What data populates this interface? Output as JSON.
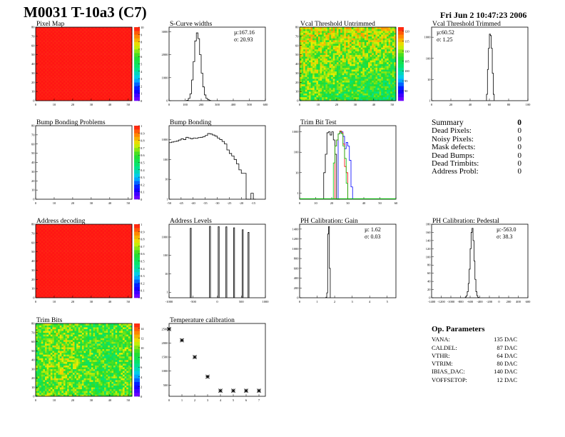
{
  "header": {
    "title": "M0031 T-10a3 (C7)",
    "date": "Fri Jun  2 10:47:23 2006"
  },
  "colors": {
    "hist_line": "#000000",
    "trim_green": "#00c000",
    "trim_red": "#ff0000",
    "trim_blue": "#0000ff",
    "heat_red": "#ff2020"
  },
  "summary": {
    "title": "Summary",
    "total": "0",
    "rows": [
      {
        "label": "Dead Pixels:",
        "value": "0"
      },
      {
        "label": "Noisy Pixels:",
        "value": "0"
      },
      {
        "label": "Mask defects:",
        "value": "0"
      },
      {
        "label": "Dead Bumps:",
        "value": "0"
      },
      {
        "label": "Dead Trimbits:",
        "value": "0"
      },
      {
        "label": "Address Probl:",
        "value": "0"
      }
    ]
  },
  "op_parameters": {
    "title": "Op. Parameters",
    "rows": [
      {
        "label": "VANA:",
        "value": "135 DAC"
      },
      {
        "label": "CALDEL:",
        "value": "87 DAC"
      },
      {
        "label": "VTHR:",
        "value": "64 DAC"
      },
      {
        "label": "VTRIM:",
        "value": "80 DAC"
      },
      {
        "label": "IBIAS_DAC:",
        "value": "140 DAC"
      },
      {
        "label": "VOFFSETOP:",
        "value": "12 DAC"
      }
    ]
  },
  "chart_data": [
    {
      "id": "pixel-map",
      "type": "heatmap",
      "title": "Pixel Map",
      "xlim": [
        0,
        52
      ],
      "ylim": [
        0,
        80
      ],
      "xticks": [
        0,
        10,
        20,
        30,
        40,
        50
      ],
      "yticks": [
        0,
        10,
        20,
        30,
        40,
        50,
        60,
        70,
        80
      ],
      "zlim": [
        0,
        10
      ],
      "zticks": [
        0,
        1,
        2,
        3,
        4,
        5,
        6,
        7,
        8,
        9,
        10
      ],
      "pattern": "uniform",
      "level": 10
    },
    {
      "id": "s-curve-widths",
      "type": "bar",
      "title": "S-Curve widths",
      "xlim": [
        0,
        600
      ],
      "ylim": [
        0,
        3200
      ],
      "xticks": [
        0,
        100,
        200,
        300,
        400,
        500,
        600
      ],
      "yticks": [
        0,
        1000,
        2000,
        3000
      ],
      "stats": [
        "µ:167.16",
        "σ: 20.93"
      ],
      "bin_width": 10,
      "series": [
        {
          "x": [
            110,
            120,
            130,
            140,
            150,
            160,
            170,
            180,
            190,
            200,
            210,
            220,
            230,
            240,
            250
          ],
          "values": [
            20,
            100,
            300,
            900,
            1700,
            2600,
            2950,
            2700,
            2000,
            1200,
            600,
            250,
            100,
            40,
            10
          ]
        }
      ]
    },
    {
      "id": "vcal-threshold-untrimmed",
      "type": "heatmap",
      "title": "Vcal Threshold Untrimmed",
      "xlim": [
        0,
        52
      ],
      "ylim": [
        0,
        80
      ],
      "xticks": [
        0,
        10,
        20,
        30,
        40,
        50
      ],
      "yticks": [
        0,
        10,
        20,
        30,
        40,
        50,
        60,
        70,
        80
      ],
      "zlim": [
        85,
        122
      ],
      "zticks": [
        90,
        95,
        100,
        105,
        110,
        115,
        120
      ],
      "pattern": "noisy",
      "level": 106
    },
    {
      "id": "vcal-threshold-trimmed",
      "type": "bar",
      "title": "Vcal Threshold Trimmed",
      "log": true,
      "xlim": [
        0,
        100
      ],
      "ylim": [
        1,
        3000
      ],
      "xticks": [
        0,
        20,
        40,
        60,
        80,
        100
      ],
      "yticks": [
        1,
        10,
        100,
        1000
      ],
      "stats": [
        "µ:60.52",
        "σ: 1.25"
      ],
      "bin_width": 1,
      "series": [
        {
          "x": [
            57,
            58,
            59,
            60,
            61,
            62,
            63,
            64
          ],
          "values": [
            2,
            30,
            300,
            1400,
            1200,
            300,
            20,
            2
          ]
        }
      ]
    },
    {
      "id": "bump-bonding-problems",
      "type": "heatmap",
      "title": "Bump Bonding Problems",
      "xlim": [
        0,
        52
      ],
      "ylim": [
        0,
        80
      ],
      "xticks": [
        0,
        10,
        20,
        30,
        40,
        50
      ],
      "yticks": [
        0,
        10,
        20,
        30,
        40,
        50,
        60,
        70,
        80
      ],
      "zlim": [
        0,
        1
      ],
      "zticks": [
        0,
        0.1,
        0.2,
        0.3,
        0.4,
        0.5,
        0.6,
        0.7,
        0.8,
        0.9,
        1
      ],
      "pattern": "empty",
      "level": 0
    },
    {
      "id": "bump-bonding",
      "type": "bar",
      "title": "Bump Bonding",
      "log": true,
      "xlim": [
        -50,
        -10
      ],
      "ylim": [
        1,
        5000
      ],
      "xticks": [
        -50,
        -45,
        -40,
        -35,
        -30,
        -25,
        -20,
        -15
      ],
      "yticks": [
        1,
        10,
        100,
        1000
      ],
      "bin_width": 1,
      "series": [
        {
          "x": [
            -50,
            -49,
            -48,
            -47,
            -46,
            -45,
            -44,
            -43,
            -42,
            -41,
            -40,
            -39,
            -38,
            -37,
            -36,
            -35,
            -34,
            -33,
            -32,
            -31,
            -30,
            -29,
            -28,
            -27,
            -26,
            -25,
            -24,
            -23,
            -22,
            -21,
            -20,
            -19,
            -18,
            -17,
            -16,
            -15
          ],
          "values": [
            700,
            750,
            800,
            850,
            950,
            1100,
            1000,
            1300,
            1200,
            1100,
            1200,
            1150,
            1250,
            1300,
            1400,
            1600,
            2000,
            1900,
            1700,
            1500,
            1200,
            1000,
            800,
            600,
            300,
            200,
            150,
            100,
            60,
            30,
            20,
            20,
            0,
            0,
            2,
            0
          ]
        }
      ]
    },
    {
      "id": "trim-bit-test",
      "type": "bar",
      "title": "Trim Bit Test",
      "log": true,
      "xlim": [
        0,
        60
      ],
      "ylim": [
        0.5,
        2000
      ],
      "xticks": [
        0,
        10,
        20,
        30,
        40,
        50,
        60
      ],
      "yticks": [
        1,
        10,
        100,
        1000
      ],
      "bin_width": 1,
      "series": [
        {
          "color": "#000000",
          "x": [
            15,
            16,
            17,
            18,
            19,
            20,
            21,
            22,
            23,
            24
          ],
          "values": [
            10,
            80,
            900,
            1000,
            700,
            1000,
            400,
            80,
            0,
            0
          ]
        },
        {
          "color": "#0000ff",
          "x": [
            24,
            25,
            26,
            27,
            28,
            29,
            30,
            31,
            32
          ],
          "values": [
            800,
            900,
            1000,
            600,
            150,
            300,
            200,
            40,
            2
          ]
        },
        {
          "color": "#ff0000",
          "x": [
            22,
            23,
            24,
            25,
            26,
            27,
            28,
            29
          ],
          "values": [
            200,
            400,
            800,
            1100,
            900,
            250,
            20,
            10
          ]
        },
        {
          "color": "#00c000",
          "x": [
            21,
            22,
            23,
            24,
            25,
            26,
            27,
            28,
            29
          ],
          "values": [
            30,
            200,
            400,
            800,
            1000,
            800,
            200,
            50,
            3
          ]
        }
      ]
    },
    {
      "id": "address-decoding",
      "type": "heatmap",
      "title": "Address decoding",
      "xlim": [
        0,
        52
      ],
      "ylim": [
        0,
        80
      ],
      "xticks": [
        0,
        10,
        20,
        30,
        40,
        50
      ],
      "yticks": [
        0,
        10,
        20,
        30,
        40,
        50,
        60,
        70,
        80
      ],
      "zlim": [
        0,
        1
      ],
      "zticks": [
        0,
        0.1,
        0.2,
        0.3,
        0.4,
        0.5,
        0.6,
        0.7,
        0.8,
        0.9,
        1
      ],
      "pattern": "uniform",
      "level": 1
    },
    {
      "id": "address-levels",
      "type": "bar",
      "title": "Address Levels",
      "log": true,
      "xlim": [
        -1000,
        1000
      ],
      "ylim": [
        0.5,
        5000
      ],
      "xticks": [
        -1000,
        -500,
        0,
        500,
        1000
      ],
      "yticks": [
        1,
        10,
        100,
        1000
      ],
      "bin_width": 20,
      "series": [
        {
          "x": [
            -560,
            -160,
            20,
            180,
            340,
            520,
            640
          ],
          "values": [
            3000,
            3800,
            3700,
            3600,
            3200,
            2500,
            1800
          ]
        }
      ]
    },
    {
      "id": "ph-calibration-gain",
      "type": "bar",
      "title": "PH Calibration: Gain",
      "xlim": [
        0,
        5.5
      ],
      "ylim": [
        0,
        1500
      ],
      "xticks": [
        0,
        1,
        2,
        3,
        4,
        5
      ],
      "yticks": [
        0,
        200,
        400,
        600,
        800,
        1000,
        1200,
        1400
      ],
      "stats": [
        "µ: 1.62",
        "σ: 0.03"
      ],
      "bin_width": 0.05,
      "series": [
        {
          "x": [
            1.5,
            1.55,
            1.6,
            1.65,
            1.7
          ],
          "values": [
            10,
            100,
            1300,
            1450,
            600
          ]
        }
      ]
    },
    {
      "id": "ph-calibration-pedestal",
      "type": "bar",
      "title": "PH Calibration: Pedestal",
      "xlim": [
        -1400,
        600
      ],
      "ylim": [
        0,
        180
      ],
      "xticks": [
        -1400,
        -1200,
        -1000,
        -800,
        -600,
        -400,
        -200,
        0,
        200,
        400,
        600
      ],
      "yticks": [
        0,
        20,
        40,
        60,
        80,
        100,
        120,
        140,
        160,
        180
      ],
      "stats": [
        "µ:-563.0",
        "σ: 38.3"
      ],
      "bin_width": 20,
      "series": [
        {
          "x": [
            -700,
            -680,
            -660,
            -640,
            -620,
            -600,
            -580,
            -560,
            -540,
            -520,
            -500,
            -480,
            -460,
            -440
          ],
          "values": [
            2,
            5,
            15,
            35,
            70,
            120,
            160,
            170,
            140,
            90,
            45,
            15,
            5,
            1
          ]
        }
      ]
    },
    {
      "id": "trim-bits",
      "type": "heatmap",
      "title": "Trim Bits",
      "xlim": [
        0,
        52
      ],
      "ylim": [
        0,
        80
      ],
      "xticks": [
        0,
        10,
        20,
        30,
        40,
        50
      ],
      "yticks": [
        0,
        10,
        20,
        30,
        40,
        50,
        60,
        70,
        80
      ],
      "zlim": [
        0,
        15
      ],
      "zticks": [
        0,
        2,
        4,
        6,
        8,
        10,
        12,
        14
      ],
      "pattern": "noisy",
      "level": 8
    },
    {
      "id": "temperature-calibration",
      "type": "scatter",
      "title": "Temperature calibration",
      "xlim": [
        0,
        7.5
      ],
      "ylim": [
        100,
        2700
      ],
      "xticks": [
        0,
        1,
        2,
        3,
        4,
        5,
        6,
        7
      ],
      "yticks": [
        500,
        1000,
        1500,
        2000,
        2500
      ],
      "series": [
        {
          "x": [
            0,
            1,
            2,
            3,
            4,
            5,
            6,
            7
          ],
          "values": [
            2500,
            2100,
            1500,
            800,
            300,
            300,
            300,
            300
          ]
        }
      ]
    }
  ]
}
